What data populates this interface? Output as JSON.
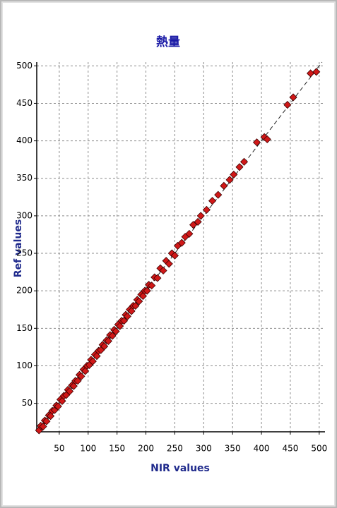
{
  "chart_data": {
    "type": "scatter",
    "title": "熱量",
    "x_label": "NIR values",
    "y_label": "Ref values",
    "xlim": [
      11,
      510
    ],
    "ylim": [
      12,
      505
    ],
    "xticks": [
      50,
      100,
      150,
      200,
      250,
      300,
      350,
      400,
      450,
      500
    ],
    "yticks": [
      50,
      100,
      150,
      200,
      250,
      300,
      350,
      400,
      450,
      500
    ],
    "grid": true,
    "color": "#d01818",
    "x": [
      15,
      18,
      22,
      25,
      28,
      32,
      35,
      38,
      42,
      45,
      48,
      52,
      55,
      58,
      62,
      65,
      68,
      72,
      75,
      78,
      82,
      85,
      88,
      92,
      95,
      98,
      102,
      105,
      108,
      112,
      115,
      118,
      122,
      125,
      128,
      132,
      135,
      138,
      142,
      145,
      148,
      152,
      155,
      158,
      162,
      165,
      168,
      172,
      175,
      178,
      182,
      185,
      188,
      192,
      195,
      198,
      202,
      205,
      210,
      215,
      220,
      225,
      230,
      235,
      240,
      245,
      250,
      255,
      262,
      268,
      275,
      282,
      290,
      295,
      305,
      315,
      325,
      335,
      345,
      352,
      362,
      370,
      392,
      405,
      410,
      445,
      455,
      485,
      495
    ],
    "y": [
      14,
      20,
      19,
      27,
      26,
      34,
      33,
      40,
      41,
      47,
      46,
      55,
      53,
      60,
      61,
      68,
      66,
      74,
      73,
      80,
      80,
      88,
      86,
      95,
      93,
      100,
      101,
      108,
      106,
      115,
      113,
      120,
      121,
      128,
      126,
      134,
      133,
      141,
      140,
      148,
      146,
      155,
      153,
      160,
      160,
      168,
      166,
      175,
      173,
      180,
      180,
      188,
      186,
      195,
      193,
      200,
      200,
      208,
      207,
      218,
      217,
      230,
      227,
      240,
      236,
      250,
      247,
      260,
      264,
      272,
      276,
      288,
      292,
      300,
      308,
      320,
      328,
      340,
      348,
      355,
      365,
      372,
      398,
      405,
      402,
      448,
      458,
      490,
      492
    ],
    "reference_line": {
      "x": [
        12,
        505
      ],
      "y": [
        12,
        505
      ]
    }
  }
}
